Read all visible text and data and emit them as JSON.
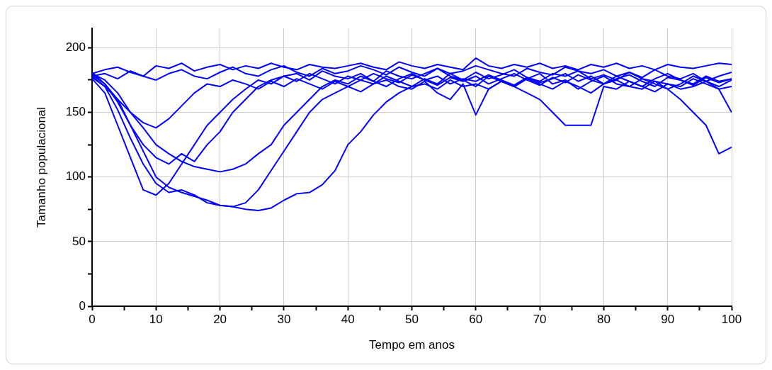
{
  "chart_data": {
    "type": "line",
    "xlabel": "Tempo em anos",
    "ylabel": "Tamanho populacional",
    "x": [
      0,
      2,
      4,
      6,
      8,
      10,
      12,
      14,
      16,
      18,
      20,
      22,
      24,
      26,
      28,
      30,
      32,
      34,
      36,
      38,
      40,
      42,
      44,
      46,
      48,
      50,
      52,
      54,
      56,
      58,
      60,
      62,
      64,
      66,
      68,
      70,
      72,
      74,
      76,
      78,
      80,
      82,
      84,
      86,
      88,
      90,
      92,
      94,
      96,
      98,
      100
    ],
    "series": [
      {
        "color": "#0000ff",
        "values": [
          178,
          170,
          152,
          130,
          110,
          95,
          88,
          90,
          86,
          80,
          78,
          77,
          75,
          74,
          76,
          82,
          87,
          88,
          94,
          105,
          125,
          135,
          148,
          158,
          165,
          170,
          172,
          168,
          175,
          170,
          172,
          168,
          174,
          170,
          176,
          172,
          168,
          174,
          170,
          165,
          172,
          175,
          170,
          168,
          174,
          172,
          170,
          176,
          172,
          168,
          170
        ]
      },
      {
        "color": "#0000ff",
        "values": [
          179,
          172,
          160,
          140,
          120,
          100,
          92,
          88,
          85,
          82,
          78,
          77,
          80,
          90,
          105,
          120,
          135,
          150,
          160,
          165,
          170,
          175,
          172,
          178,
          174,
          170,
          176,
          172,
          180,
          175,
          170,
          178,
          174,
          170,
          176,
          180,
          172,
          175,
          168,
          174,
          178,
          172,
          170,
          176,
          174,
          168,
          172,
          178,
          174,
          170,
          175
        ]
      },
      {
        "color": "#0000ff",
        "values": [
          176,
          165,
          140,
          115,
          90,
          86,
          95,
          110,
          125,
          140,
          150,
          160,
          168,
          175,
          172,
          178,
          180,
          175,
          182,
          178,
          176,
          180,
          174,
          182,
          178,
          176,
          180,
          184,
          178,
          175,
          181,
          176,
          179,
          183,
          177,
          174,
          180,
          178,
          182,
          176,
          179,
          175,
          181,
          177,
          183,
          178,
          176,
          180,
          174,
          178,
          181
        ]
      },
      {
        "color": "#0000ff",
        "values": [
          180,
          175,
          165,
          150,
          138,
          125,
          118,
          112,
          108,
          106,
          104,
          106,
          110,
          118,
          125,
          140,
          150,
          160,
          170,
          175,
          172,
          178,
          174,
          170,
          176,
          180,
          175,
          178,
          172,
          176,
          174,
          179,
          175,
          171,
          177,
          173,
          176,
          180,
          174,
          178,
          172,
          176,
          179,
          174,
          170,
          177,
          175,
          172,
          178,
          174,
          176
        ]
      },
      {
        "color": "#0000ff",
        "values": [
          178,
          180,
          176,
          182,
          178,
          175,
          180,
          183,
          178,
          176,
          181,
          185,
          180,
          178,
          183,
          186,
          181,
          178,
          184,
          180,
          182,
          186,
          183,
          179,
          185,
          181,
          178,
          184,
          180,
          182,
          186,
          183,
          180,
          178,
          184,
          181,
          179,
          185,
          182,
          180,
          183,
          178,
          181,
          176,
          172,
          168,
          160,
          150,
          140,
          118,
          123
        ]
      },
      {
        "color": "#0000ff",
        "values": [
          180,
          183,
          185,
          181,
          178,
          186,
          184,
          188,
          182,
          185,
          187,
          183,
          186,
          184,
          188,
          185,
          183,
          187,
          185,
          184,
          186,
          188,
          185,
          183,
          189,
          186,
          184,
          187,
          185,
          183,
          192,
          186,
          184,
          187,
          185,
          188,
          184,
          186,
          183,
          187,
          185,
          188,
          184,
          186,
          183,
          187,
          185,
          184,
          186,
          188,
          187
        ]
      },
      {
        "color": "#0000ff",
        "values": [
          177,
          170,
          160,
          150,
          142,
          138,
          145,
          155,
          165,
          172,
          170,
          175,
          172,
          168,
          174,
          170,
          176,
          172,
          168,
          174,
          170,
          166,
          172,
          175,
          170,
          168,
          174,
          165,
          160,
          172,
          148,
          168,
          174,
          170,
          165,
          160,
          150,
          140,
          140,
          140,
          170,
          168,
          174,
          170,
          166,
          172,
          168,
          170,
          174,
          168,
          150
        ]
      },
      {
        "color": "#0000ff",
        "values": [
          181,
          172,
          158,
          140,
          125,
          115,
          110,
          118,
          112,
          125,
          135,
          150,
          160,
          170,
          175,
          178,
          174,
          180,
          176,
          172,
          178,
          175,
          180,
          176,
          173,
          179,
          175,
          171,
          177,
          174,
          178,
          172,
          176,
          180,
          175,
          171,
          177,
          173,
          179,
          175,
          172,
          178,
          174,
          170,
          176,
          180,
          175,
          171,
          177,
          173,
          176
        ]
      }
    ],
    "xlim": [
      0,
      100
    ],
    "xticks": [
      0,
      {
        "value": 5,
        "label": null
      },
      10,
      {
        "value": 15,
        "label": null
      },
      20,
      {
        "value": 25,
        "label": null
      },
      30,
      {
        "value": 35,
        "label": null
      },
      40,
      {
        "value": 45,
        "label": null
      },
      50,
      {
        "value": 55,
        "label": null
      },
      60,
      {
        "value": 65,
        "label": null
      },
      70,
      {
        "value": 75,
        "label": null
      },
      80,
      {
        "value": 85,
        "label": null
      },
      90,
      {
        "value": 95,
        "label": null
      },
      100
    ],
    "ylim": [
      0,
      215
    ],
    "yticks": [
      0,
      {
        "value": 25,
        "label": null
      },
      50,
      {
        "value": 75,
        "label": null
      },
      100,
      {
        "value": 125,
        "label": null
      },
      150,
      {
        "value": 175,
        "label": null
      },
      200
    ],
    "grid": true,
    "legend": false,
    "marker": "none",
    "line_style": "solid"
  }
}
